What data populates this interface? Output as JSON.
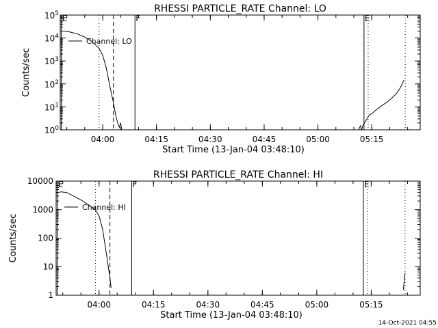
{
  "footer": {
    "timestamp": "14-Oct-2021 04:55"
  },
  "chart_data": [
    {
      "type": "line",
      "title": "RHESSI PARTICLE_RATE Channel: LO",
      "xlabel": "Start Time (13-Jan-04 03:48:10)",
      "ylabel": "Counts/sec",
      "y_scale": "log",
      "ylim": [
        1,
        100000
      ],
      "y_tick_labels": [
        "10^0",
        "10^1",
        "10^2",
        "10^3",
        "10^4",
        "10^5"
      ],
      "xlim": [
        "03:48:10",
        "05:28:30"
      ],
      "x_tick_labels": [
        "04:00",
        "04:15",
        "04:30",
        "04:45",
        "05:00",
        "05:15"
      ],
      "legend": "Channel: LO",
      "markers": [
        {
          "label": "E",
          "time": "03:48:30",
          "style": "solid"
        },
        {
          "label": "F",
          "time": "04:09:00",
          "style": "solid"
        },
        {
          "label": "E",
          "time": "05:12:50",
          "style": "solid"
        },
        {
          "label": "",
          "time": "03:59:00",
          "style": "dotted"
        },
        {
          "label": "",
          "time": "04:03:00",
          "style": "dashed"
        },
        {
          "label": "",
          "time": "05:14:00",
          "style": "dotted"
        },
        {
          "label": "",
          "time": "05:24:20",
          "style": "dotted"
        }
      ],
      "series": [
        {
          "segments": [
            [
              [
                "03:48:10",
                20000
              ],
              [
                "03:49:30",
                20000
              ],
              [
                "03:51:00",
                18000
              ],
              [
                "03:53:00",
                15000
              ],
              [
                "03:55:00",
                11000
              ],
              [
                "03:57:00",
                7000
              ],
              [
                "03:59:00",
                3500
              ],
              [
                "04:00:00",
                1800
              ],
              [
                "04:01:00",
                500
              ],
              [
                "04:02:00",
                80
              ],
              [
                "04:03:00",
                15
              ],
              [
                "04:03:40",
                4
              ],
              [
                "04:04:10",
                2
              ],
              [
                "04:04:40",
                1.3
              ],
              [
                "04:05:00",
                2
              ],
              [
                "04:05:20",
                1
              ]
            ],
            [
              [
                "05:11:20",
                1
              ],
              [
                "05:11:50",
                1.5
              ],
              [
                "05:12:10",
                1
              ],
              [
                "05:12:30",
                1.5
              ],
              [
                "05:13:00",
                2
              ],
              [
                "05:13:40",
                3
              ],
              [
                "05:14:20",
                4.5
              ],
              [
                "05:15:00",
                5
              ],
              [
                "05:16:00",
                7
              ],
              [
                "05:17:00",
                9
              ],
              [
                "05:18:00",
                12
              ],
              [
                "05:19:00",
                15
              ],
              [
                "05:20:00",
                20
              ],
              [
                "05:21:00",
                28
              ],
              [
                "05:22:00",
                40
              ],
              [
                "05:23:00",
                70
              ],
              [
                "05:24:00",
                150
              ]
            ]
          ]
        }
      ]
    },
    {
      "type": "line",
      "title": "RHESSI PARTICLE_RATE Channel: HI",
      "xlabel": "Start Time (13-Jan-04 03:48:10)",
      "ylabel": "Counts/sec",
      "y_scale": "log",
      "ylim": [
        1,
        10000
      ],
      "y_tick_labels": [
        "1",
        "10",
        "100",
        "1000",
        "10000"
      ],
      "xlim": [
        "03:48:10",
        "05:28:30"
      ],
      "x_tick_labels": [
        "04:00",
        "04:15",
        "04:30",
        "04:45",
        "05:00",
        "05:15"
      ],
      "legend": "Channel: HI",
      "markers": [
        {
          "label": "E",
          "time": "03:48:30",
          "style": "solid"
        },
        {
          "label": "F",
          "time": "04:09:00",
          "style": "solid"
        },
        {
          "label": "E",
          "time": "05:12:50",
          "style": "solid"
        },
        {
          "label": "",
          "time": "03:59:00",
          "style": "dotted"
        },
        {
          "label": "",
          "time": "04:03:00",
          "style": "dashed"
        },
        {
          "label": "",
          "time": "05:14:00",
          "style": "dotted"
        },
        {
          "label": "",
          "time": "05:24:20",
          "style": "dotted"
        }
      ],
      "series": [
        {
          "segments": [
            [
              [
                "03:48:10",
                3800
              ],
              [
                "03:49:30",
                4200
              ],
              [
                "03:51:00",
                4000
              ],
              [
                "03:53:00",
                3000
              ],
              [
                "03:55:00",
                2200
              ],
              [
                "03:57:00",
                1500
              ],
              [
                "03:59:00",
                1000
              ],
              [
                "04:00:00",
                600
              ],
              [
                "04:01:00",
                200
              ],
              [
                "04:02:00",
                30
              ],
              [
                "04:03:00",
                4
              ],
              [
                "04:03:20",
                1.8
              ]
            ],
            [
              [
                "05:23:50",
                1.5
              ],
              [
                "05:24:10",
                4
              ],
              [
                "05:24:20",
                6
              ]
            ]
          ]
        }
      ]
    }
  ]
}
